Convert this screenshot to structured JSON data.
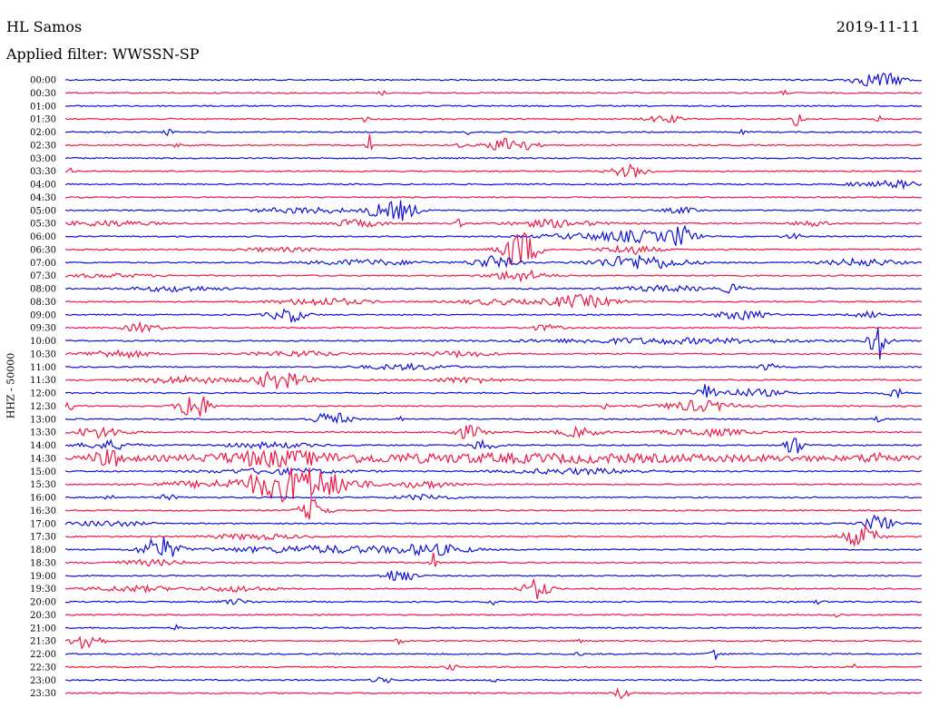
{
  "header": {
    "station": "HL Samos",
    "date": "2019-11-11",
    "filter": "Applied filter: WWSSN-SP"
  },
  "colors": {
    "blue": "#1010d8",
    "red": "#ee1745"
  },
  "chart_data": {
    "type": "line",
    "title": "HL Samos",
    "ylabel": "HHZ - 50000",
    "traces": [
      {
        "label": "00:00",
        "color": "blue",
        "events": [
          [
            0.95,
            8,
            0.03
          ]
        ]
      },
      {
        "label": "00:30",
        "color": "red",
        "events": [
          [
            0.37,
            3,
            0.004
          ],
          [
            0.84,
            3,
            0.004
          ]
        ]
      },
      {
        "label": "01:00",
        "color": "blue",
        "events": []
      },
      {
        "label": "01:30",
        "color": "red",
        "events": [
          [
            0.35,
            3,
            0.004
          ],
          [
            0.7,
            4,
            0.02
          ],
          [
            0.855,
            9,
            0.006
          ],
          [
            0.95,
            3,
            0.004
          ]
        ]
      },
      {
        "label": "02:00",
        "color": "blue",
        "events": [
          [
            0.12,
            3,
            0.005
          ],
          [
            0.47,
            2,
            0.004
          ],
          [
            0.79,
            2,
            0.004
          ]
        ]
      },
      {
        "label": "02:30",
        "color": "red",
        "events": [
          [
            0.355,
            12,
            0.003
          ],
          [
            0.52,
            9,
            0.025
          ],
          [
            0.46,
            3,
            0.004
          ],
          [
            0.13,
            2,
            0.005
          ]
        ]
      },
      {
        "label": "03:00",
        "color": "blue",
        "events": []
      },
      {
        "label": "03:30",
        "color": "red",
        "events": [
          [
            0.005,
            3,
            0.005
          ],
          [
            0.66,
            7,
            0.02
          ]
        ]
      },
      {
        "label": "04:00",
        "color": "blue",
        "events": [
          [
            0.97,
            4,
            0.03
          ],
          [
            0.92,
            2,
            0.01
          ]
        ]
      },
      {
        "label": "04:30",
        "color": "red",
        "events": []
      },
      {
        "label": "05:00",
        "color": "blue",
        "events": [
          [
            0.36,
            6,
            0.008
          ],
          [
            0.39,
            11,
            0.02
          ],
          [
            0.28,
            3,
            0.06
          ],
          [
            0.72,
            3,
            0.02
          ]
        ]
      },
      {
        "label": "05:30",
        "color": "red",
        "events": [
          [
            0.05,
            3,
            0.05
          ],
          [
            0.34,
            4,
            0.03
          ],
          [
            0.46,
            4,
            0.005
          ],
          [
            0.57,
            4,
            0.05
          ],
          [
            0.87,
            3,
            0.02
          ]
        ]
      },
      {
        "label": "06:00",
        "color": "blue",
        "events": [
          [
            0.67,
            6,
            0.04
          ],
          [
            0.72,
            11,
            0.015
          ],
          [
            0.6,
            3,
            0.05
          ],
          [
            0.85,
            3,
            0.01
          ]
        ]
      },
      {
        "label": "06:30",
        "color": "red",
        "events": [
          [
            0.53,
            22,
            0.02
          ],
          [
            0.66,
            5,
            0.03
          ],
          [
            0.25,
            2,
            0.05
          ]
        ]
      },
      {
        "label": "07:00",
        "color": "blue",
        "events": [
          [
            0.5,
            7,
            0.025
          ],
          [
            0.67,
            8,
            0.05
          ],
          [
            0.35,
            3,
            0.06
          ],
          [
            0.93,
            4,
            0.04
          ]
        ]
      },
      {
        "label": "07:30",
        "color": "red",
        "events": [
          [
            0.53,
            6,
            0.03
          ],
          [
            0.05,
            2,
            0.05
          ]
        ]
      },
      {
        "label": "08:00",
        "color": "blue",
        "events": [
          [
            0.13,
            3,
            0.05
          ],
          [
            0.78,
            5,
            0.012
          ],
          [
            0.7,
            3,
            0.05
          ]
        ]
      },
      {
        "label": "08:30",
        "color": "red",
        "events": [
          [
            0.6,
            7,
            0.04
          ],
          [
            0.3,
            4,
            0.05
          ],
          [
            0.5,
            3,
            0.04
          ]
        ]
      },
      {
        "label": "09:00",
        "color": "blue",
        "events": [
          [
            0.26,
            8,
            0.02
          ],
          [
            0.79,
            5,
            0.03
          ],
          [
            0.94,
            3,
            0.02
          ]
        ]
      },
      {
        "label": "09:30",
        "color": "red",
        "events": [
          [
            0.09,
            5,
            0.02
          ],
          [
            0.56,
            3,
            0.02
          ]
        ]
      },
      {
        "label": "10:00",
        "color": "blue",
        "events": [
          [
            0.95,
            22,
            0.01
          ],
          [
            0.7,
            3,
            0.15
          ]
        ]
      },
      {
        "label": "10:30",
        "color": "red",
        "events": [
          [
            0.06,
            4,
            0.04
          ],
          [
            0.27,
            3,
            0.05
          ],
          [
            0.46,
            3,
            0.04
          ]
        ]
      },
      {
        "label": "11:00",
        "color": "blue",
        "events": [
          [
            0.82,
            4,
            0.01
          ],
          [
            0.4,
            3,
            0.05
          ]
        ]
      },
      {
        "label": "11:30",
        "color": "red",
        "events": [
          [
            0.25,
            10,
            0.03
          ],
          [
            0.14,
            4,
            0.05
          ],
          [
            0.47,
            3,
            0.04
          ]
        ]
      },
      {
        "label": "12:00",
        "color": "blue",
        "events": [
          [
            0.75,
            10,
            0.01
          ],
          [
            0.97,
            6,
            0.01
          ],
          [
            0.8,
            4,
            0.04
          ]
        ]
      },
      {
        "label": "12:30",
        "color": "red",
        "events": [
          [
            0.005,
            4,
            0.005
          ],
          [
            0.15,
            20,
            0.015
          ],
          [
            0.74,
            6,
            0.04
          ],
          [
            0.63,
            3,
            0.004
          ]
        ]
      },
      {
        "label": "13:00",
        "color": "blue",
        "events": [
          [
            0.31,
            8,
            0.02
          ],
          [
            0.39,
            4,
            0.003
          ],
          [
            0.95,
            3,
            0.005
          ]
        ]
      },
      {
        "label": "13:30",
        "color": "red",
        "events": [
          [
            0.04,
            6,
            0.03
          ],
          [
            0.47,
            7,
            0.02
          ],
          [
            0.6,
            5,
            0.025
          ],
          [
            0.75,
            4,
            0.05
          ]
        ]
      },
      {
        "label": "14:00",
        "color": "blue",
        "events": [
          [
            0.05,
            5,
            0.03
          ],
          [
            0.49,
            6,
            0.015
          ],
          [
            0.85,
            12,
            0.01
          ],
          [
            0.24,
            3,
            0.05
          ]
        ]
      },
      {
        "label": "14:30",
        "color": "red",
        "events": [
          [
            0.5,
            5,
            0.45
          ],
          [
            0.05,
            8,
            0.02
          ],
          [
            0.24,
            6,
            0.06
          ],
          [
            0.95,
            5,
            0.02
          ]
        ]
      },
      {
        "label": "15:00",
        "color": "blue",
        "events": [
          [
            0.25,
            3,
            0.08
          ],
          [
            0.6,
            3,
            0.08
          ]
        ]
      },
      {
        "label": "15:30",
        "color": "red",
        "events": [
          [
            0.27,
            20,
            0.06
          ],
          [
            0.42,
            4,
            0.03
          ],
          [
            0.15,
            3,
            0.05
          ]
        ]
      },
      {
        "label": "16:00",
        "color": "blue",
        "events": [
          [
            0.05,
            3,
            0.01
          ],
          [
            0.12,
            3,
            0.01
          ],
          [
            0.42,
            3,
            0.03
          ]
        ]
      },
      {
        "label": "16:30",
        "color": "red",
        "events": [
          [
            0.29,
            13,
            0.015
          ]
        ]
      },
      {
        "label": "17:00",
        "color": "blue",
        "events": [
          [
            0.95,
            10,
            0.015
          ],
          [
            0.05,
            3,
            0.04
          ]
        ]
      },
      {
        "label": "17:30",
        "color": "red",
        "events": [
          [
            0.93,
            11,
            0.02
          ],
          [
            0.22,
            3,
            0.05
          ]
        ]
      },
      {
        "label": "18:00",
        "color": "blue",
        "events": [
          [
            0.11,
            14,
            0.02
          ],
          [
            0.43,
            5,
            0.04
          ],
          [
            0.3,
            4,
            0.12
          ]
        ]
      },
      {
        "label": "18:30",
        "color": "red",
        "events": [
          [
            0.43,
            12,
            0.004
          ],
          [
            0.1,
            3,
            0.04
          ]
        ]
      },
      {
        "label": "19:00",
        "color": "blue",
        "events": [
          [
            0.39,
            9,
            0.015
          ]
        ]
      },
      {
        "label": "19:30",
        "color": "red",
        "events": [
          [
            0.55,
            11,
            0.015
          ],
          [
            0.08,
            3,
            0.05
          ],
          [
            0.2,
            3,
            0.04
          ]
        ]
      },
      {
        "label": "20:00",
        "color": "blue",
        "events": [
          [
            0.2,
            3,
            0.015
          ],
          [
            0.5,
            3,
            0.005
          ],
          [
            0.88,
            3,
            0.005
          ]
        ]
      },
      {
        "label": "20:30",
        "color": "red",
        "events": [
          [
            0.9,
            3,
            0.005
          ]
        ]
      },
      {
        "label": "21:00",
        "color": "blue",
        "events": [
          [
            0.13,
            3,
            0.005
          ]
        ]
      },
      {
        "label": "21:30",
        "color": "red",
        "events": [
          [
            0.025,
            12,
            0.015
          ],
          [
            0.39,
            3,
            0.005
          ],
          [
            0.6,
            2,
            0.005
          ]
        ]
      },
      {
        "label": "22:00",
        "color": "blue",
        "events": [
          [
            0.76,
            7,
            0.008
          ],
          [
            0.6,
            3,
            0.004
          ]
        ]
      },
      {
        "label": "22:30",
        "color": "red",
        "events": [
          [
            0.45,
            3,
            0.008
          ],
          [
            0.92,
            3,
            0.005
          ]
        ]
      },
      {
        "label": "23:00",
        "color": "blue",
        "events": [
          [
            0.37,
            4,
            0.01
          ],
          [
            0.5,
            3,
            0.004
          ]
        ]
      },
      {
        "label": "23:30",
        "color": "red",
        "events": [
          [
            0.65,
            7,
            0.008
          ]
        ]
      }
    ]
  }
}
